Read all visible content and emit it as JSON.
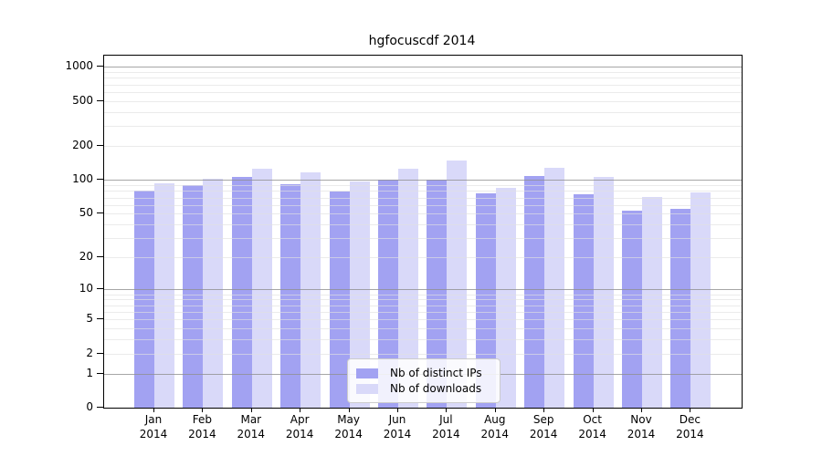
{
  "title": "hgfocuscdf 2014",
  "colors": {
    "bar_ips": "#a2a2f2",
    "bar_downloads": "#d9d9f9",
    "grid_major": "#909090",
    "grid_minor": "#e0e0e0",
    "axis": "#000000",
    "legend_border": "#cccccc"
  },
  "legend": {
    "position": "lower center"
  },
  "chart_data": {
    "type": "bar",
    "title": "hgfocuscdf 2014",
    "categories": [
      "Jan 2014",
      "Feb 2014",
      "Mar 2014",
      "Apr 2014",
      "May 2014",
      "Jun 2014",
      "Jul 2014",
      "Aug 2014",
      "Sep 2014",
      "Oct 2014",
      "Nov 2014",
      "Dec 2014"
    ],
    "series": [
      {
        "name": "Nb of distinct IPs",
        "color": "#a2a2f2",
        "values": [
          81,
          90,
          107,
          92,
          79,
          101,
          101,
          76,
          109,
          75,
          53,
          55
        ]
      },
      {
        "name": "Nb of downloads",
        "color": "#d9d9f9",
        "values": [
          93,
          103,
          127,
          117,
          97,
          127,
          150,
          85,
          128,
          106,
          71,
          77
        ]
      }
    ],
    "yscale": "log1p",
    "yticks": [
      0,
      1,
      2,
      5,
      10,
      20,
      50,
      100,
      200,
      500,
      1000
    ],
    "minor_grid_values": [
      2,
      3,
      4,
      5,
      6,
      7,
      8,
      9,
      20,
      30,
      40,
      50,
      60,
      70,
      80,
      90,
      200,
      300,
      400,
      500,
      600,
      700,
      800,
      900
    ],
    "major_grid_values": [
      1,
      10,
      100,
      1000
    ],
    "ylim": [
      0,
      1230
    ],
    "grid": true,
    "legend_position": "lower center"
  }
}
